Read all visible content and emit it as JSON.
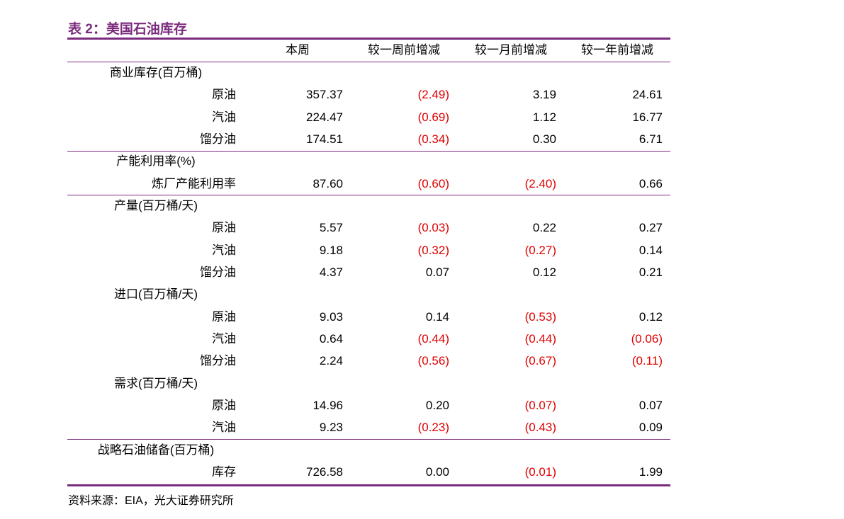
{
  "title": "表 2：美国石油库存",
  "table": {
    "headers": [
      "本周",
      "较一周前增减",
      "较一月前增减",
      "较一年前增减"
    ],
    "sections": [
      {
        "label": "商业库存(百万桶)",
        "rows": [
          {
            "label": "原油",
            "values": [
              "357.37",
              "(2.49)",
              "3.19",
              "24.61"
            ]
          },
          {
            "label": "汽油",
            "values": [
              "224.47",
              "(0.69)",
              "1.12",
              "16.77"
            ]
          },
          {
            "label": "馏分油",
            "values": [
              "174.51",
              "(0.34)",
              "0.30",
              "6.71"
            ]
          }
        ]
      },
      {
        "label": "产能利用率(%)",
        "rows": [
          {
            "label": "炼厂产能利用率",
            "values": [
              "87.60",
              "(0.60)",
              "(2.40)",
              "0.66"
            ]
          }
        ]
      },
      {
        "label": "产量(百万桶/天)",
        "rows": [
          {
            "label": "原油",
            "values": [
              "5.57",
              "(0.03)",
              "0.22",
              "0.27"
            ]
          },
          {
            "label": "汽油",
            "values": [
              "9.18",
              "(0.32)",
              "(0.27)",
              "0.14"
            ]
          },
          {
            "label": "馏分油",
            "values": [
              "4.37",
              "0.07",
              "0.12",
              "0.21"
            ]
          }
        ]
      },
      {
        "label": "进口(百万桶/天)",
        "rows": [
          {
            "label": "原油",
            "values": [
              "9.03",
              "0.14",
              "(0.53)",
              "0.12"
            ]
          },
          {
            "label": "汽油",
            "values": [
              "0.64",
              "(0.44)",
              "(0.44)",
              "(0.06)"
            ]
          },
          {
            "label": "馏分油",
            "values": [
              "2.24",
              "(0.56)",
              "(0.67)",
              "(0.11)"
            ]
          }
        ]
      },
      {
        "label": "需求(百万桶/天)",
        "rows": [
          {
            "label": "原油",
            "values": [
              "14.96",
              "0.20",
              "(0.07)",
              "0.07"
            ]
          },
          {
            "label": "汽油",
            "values": [
              "9.23",
              "(0.23)",
              "(0.43)",
              "0.09"
            ]
          }
        ]
      },
      {
        "label": "战略石油储备(百万桶)",
        "rows": [
          {
            "label": "库存",
            "values": [
              "726.58",
              "0.00",
              "(0.01)",
              "1.99"
            ]
          }
        ]
      }
    ]
  },
  "source": "资料来源：EIA，光大证券研究所"
}
